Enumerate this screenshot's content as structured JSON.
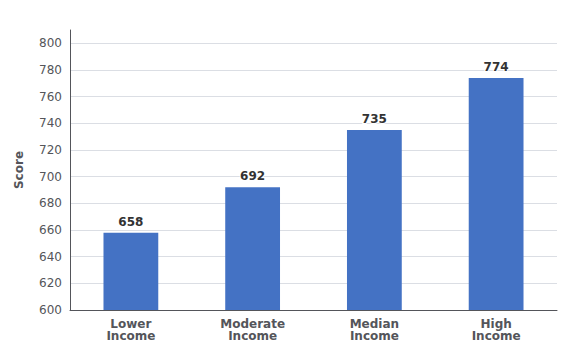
{
  "chart_data": {
    "type": "bar",
    "categories": [
      "Lower\nIncome",
      "Moderate\nIncome",
      "Median\nIncome",
      "High\nIncome"
    ],
    "values": [
      658,
      692,
      735,
      774
    ],
    "color": "#4472C4",
    "ylabel": "Score",
    "ylim": [
      600,
      810
    ],
    "yticks": [
      600,
      620,
      640,
      660,
      680,
      700,
      720,
      740,
      760,
      780,
      800
    ],
    "grid": true,
    "data_labels": true
  }
}
